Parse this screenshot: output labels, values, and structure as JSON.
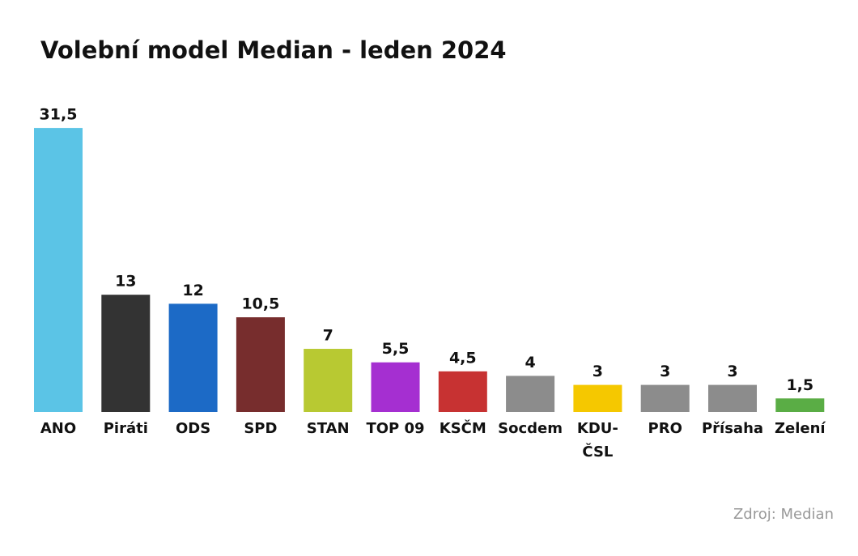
{
  "chart_data": {
    "type": "bar",
    "title": "Volební model Median - leden 2024",
    "categories": [
      "ANO",
      "Piráti",
      "ODS",
      "SPD",
      "STAN",
      "TOP 09",
      "KSČM",
      "Socdem",
      "KDU-ČSL",
      "PRO",
      "Přísaha",
      "Zelení"
    ],
    "values": [
      31.5,
      13,
      12,
      10.5,
      7,
      5.5,
      4.5,
      4,
      3,
      3,
      3,
      1.5
    ],
    "value_labels": [
      "31,5",
      "13",
      "12",
      "10,5",
      "7",
      "5,5",
      "4,5",
      "4",
      "3",
      "3",
      "3",
      "1,5"
    ],
    "colors": [
      "#5bc4e6",
      "#333333",
      "#1c6ac6",
      "#772d2d",
      "#b8c932",
      "#a52fd1",
      "#c73232",
      "#8c8c8c",
      "#f5c800",
      "#8c8c8c",
      "#8c8c8c",
      "#5aad45"
    ],
    "source": "Zdroj: Median"
  }
}
